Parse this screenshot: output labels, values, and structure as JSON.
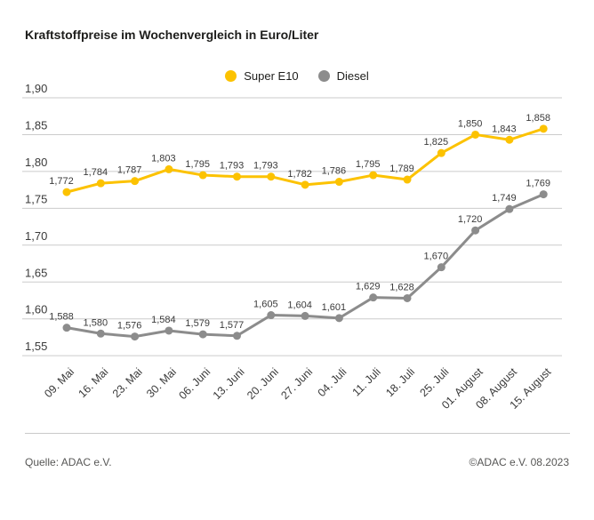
{
  "title": "Kraftstoffpreise im Wochenvergleich in Euro/Liter",
  "legend": {
    "super_e10": "Super E10",
    "diesel": "Diesel"
  },
  "footer": {
    "source": "Quelle: ADAC e.V.",
    "copyright": "©ADAC e.V. 08.2023"
  },
  "colors": {
    "super_e10": "#FCC200",
    "diesel": "#8C8C8C",
    "grid": "#CBCBCB",
    "label_text": "#3a3a3a",
    "tick_text": "#3a3a3a"
  },
  "chart_data": {
    "type": "line",
    "title": "Kraftstoffpreise im Wochenvergleich in Euro/Liter",
    "xlabel": "",
    "ylabel": "Euro/Liter",
    "ylim": [
      1.55,
      1.9
    ],
    "yticks": [
      1.9,
      1.85,
      1.8,
      1.75,
      1.7,
      1.65,
      1.6,
      1.55
    ],
    "grid": true,
    "legend_position": "top-center",
    "decimal_separator": ",",
    "categories": [
      "09. Mai",
      "16. Mai",
      "23. Mai",
      "30. Mai",
      "06. Juni",
      "13. Juni",
      "20. Juni",
      "27. Juni",
      "04. Juli",
      "11. Juli",
      "18. Juli",
      "25. Juli",
      "01. August",
      "08. August",
      "15. August"
    ],
    "series": [
      {
        "name": "Super E10",
        "color_key": "super_e10",
        "values": [
          1.772,
          1.784,
          1.787,
          1.803,
          1.795,
          1.793,
          1.793,
          1.782,
          1.786,
          1.795,
          1.789,
          1.825,
          1.85,
          1.843,
          1.858
        ]
      },
      {
        "name": "Diesel",
        "color_key": "diesel",
        "values": [
          1.588,
          1.58,
          1.576,
          1.584,
          1.579,
          1.577,
          1.605,
          1.604,
          1.601,
          1.629,
          1.628,
          1.67,
          1.72,
          1.749,
          1.769
        ]
      }
    ]
  }
}
